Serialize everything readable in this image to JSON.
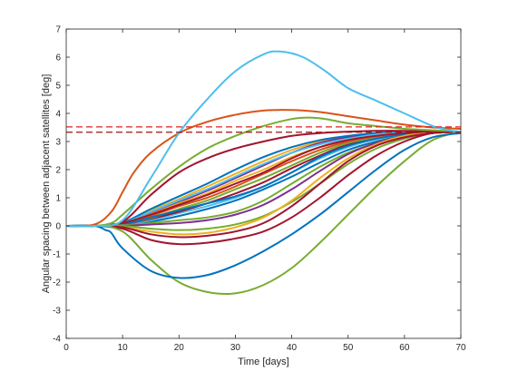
{
  "chart_data": {
    "type": "line",
    "title": "",
    "xlabel": "Time [days]",
    "ylabel": "Angular spacing between adjacent satellites [deg]",
    "xlim": [
      0,
      70
    ],
    "ylim": [
      -4,
      7
    ],
    "xticks": [
      0,
      10,
      20,
      30,
      40,
      50,
      60,
      70
    ],
    "yticks": [
      -4,
      -3,
      -2,
      -1,
      0,
      1,
      2,
      3,
      4,
      5,
      6,
      7
    ],
    "grid": false,
    "legend": "none",
    "reference_lines": [
      {
        "y": 3.52,
        "style": "dashed",
        "color": "#e02020"
      },
      {
        "y": 3.33,
        "style": "dashed",
        "color": "#a01010"
      }
    ],
    "series": [
      {
        "color": "#4dbeee",
        "x": [
          0,
          5,
          10,
          15,
          20,
          25,
          30,
          35,
          38,
          42,
          46,
          50,
          55,
          60,
          65,
          68,
          70
        ],
        "y": [
          0,
          0,
          0.2,
          1.7,
          3.3,
          4.5,
          5.5,
          6.1,
          6.2,
          6.0,
          5.5,
          4.9,
          4.45,
          4.0,
          3.55,
          3.4,
          3.35
        ]
      },
      {
        "color": "#d95319",
        "x": [
          0,
          5,
          8,
          10,
          12,
          15,
          20,
          25,
          30,
          35,
          40,
          45,
          50,
          55,
          60,
          65,
          70
        ],
        "y": [
          0,
          0.05,
          0.5,
          1.2,
          1.9,
          2.6,
          3.3,
          3.7,
          3.95,
          4.1,
          4.12,
          4.05,
          3.9,
          3.75,
          3.6,
          3.5,
          3.45
        ]
      },
      {
        "color": "#77ac30",
        "x": [
          0,
          5,
          8,
          10,
          15,
          20,
          25,
          30,
          35,
          40,
          43,
          46,
          50,
          55,
          60,
          65,
          70
        ],
        "y": [
          0,
          0,
          0.1,
          0.4,
          1.3,
          2.1,
          2.75,
          3.2,
          3.55,
          3.8,
          3.85,
          3.8,
          3.65,
          3.55,
          3.45,
          3.4,
          3.35
        ]
      },
      {
        "color": "#0072bd",
        "x": [
          0,
          5,
          7,
          8,
          10,
          15,
          20,
          25,
          30,
          35,
          40,
          45,
          50,
          55,
          60,
          65,
          70
        ],
        "y": [
          0,
          0,
          -0.15,
          -0.25,
          -0.8,
          -1.6,
          -1.85,
          -1.75,
          -1.4,
          -0.9,
          -0.3,
          0.4,
          1.2,
          2.0,
          2.7,
          3.15,
          3.3
        ]
      },
      {
        "color": "#77ac30",
        "x": [
          0,
          5,
          10,
          15,
          20,
          25,
          30,
          35,
          40,
          45,
          50,
          55,
          60,
          65,
          70
        ],
        "y": [
          0,
          0,
          -0.2,
          -1.2,
          -2.0,
          -2.35,
          -2.4,
          -2.1,
          -1.5,
          -0.6,
          0.4,
          1.4,
          2.3,
          3.05,
          3.35
        ]
      },
      {
        "color": "#a2142f",
        "x": [
          0,
          5,
          10,
          15,
          20,
          25,
          30,
          35,
          40,
          45,
          50,
          55,
          60,
          65,
          70
        ],
        "y": [
          0,
          0,
          -0.1,
          -0.5,
          -0.65,
          -0.6,
          -0.45,
          -0.2,
          0.3,
          1.0,
          1.8,
          2.5,
          3.0,
          3.3,
          3.35
        ]
      },
      {
        "color": "#a2142f",
        "x": [
          0,
          5,
          10,
          15,
          20,
          25,
          30,
          35,
          40,
          45,
          50,
          55,
          60,
          65,
          70
        ],
        "y": [
          0,
          0,
          -0.05,
          -0.3,
          -0.4,
          -0.35,
          -0.2,
          0.1,
          0.7,
          1.5,
          2.3,
          2.85,
          3.15,
          3.3,
          3.35
        ]
      },
      {
        "color": "#edb120",
        "x": [
          0,
          5,
          10,
          15,
          20,
          25,
          30,
          35,
          40,
          45,
          50,
          55,
          60,
          65,
          70
        ],
        "y": [
          0,
          0,
          -0.05,
          -0.2,
          -0.3,
          -0.25,
          -0.05,
          0.3,
          0.9,
          1.7,
          2.4,
          2.9,
          3.2,
          3.3,
          3.35
        ]
      },
      {
        "color": "#77ac30",
        "x": [
          0,
          5,
          10,
          15,
          20,
          25,
          30,
          35,
          40,
          45,
          50,
          55,
          60,
          65,
          70
        ],
        "y": [
          0,
          0,
          0,
          -0.1,
          -0.15,
          -0.1,
          0.05,
          0.35,
          0.85,
          1.5,
          2.2,
          2.75,
          3.1,
          3.3,
          3.35
        ]
      },
      {
        "color": "#7e2f8e",
        "x": [
          0,
          5,
          10,
          15,
          20,
          25,
          30,
          35,
          40,
          45,
          50,
          55,
          60,
          65,
          70
        ],
        "y": [
          0,
          0,
          0,
          0.05,
          0.1,
          0.2,
          0.4,
          0.75,
          1.3,
          1.95,
          2.55,
          2.95,
          3.2,
          3.3,
          3.35
        ]
      },
      {
        "color": "#77ac30",
        "x": [
          0,
          5,
          10,
          15,
          20,
          25,
          30,
          35,
          40,
          45,
          50,
          55,
          60,
          65,
          70
        ],
        "y": [
          0,
          0,
          0.02,
          0.1,
          0.2,
          0.3,
          0.5,
          0.9,
          1.5,
          2.1,
          2.6,
          2.95,
          3.2,
          3.3,
          3.35
        ]
      },
      {
        "color": "#a2142f",
        "x": [
          0,
          5,
          10,
          15,
          20,
          25,
          30,
          35,
          40,
          45,
          50,
          55,
          60,
          65,
          70
        ],
        "y": [
          0,
          0,
          0.15,
          1.1,
          1.9,
          2.4,
          2.75,
          3.0,
          3.2,
          3.3,
          3.35,
          3.38,
          3.38,
          3.36,
          3.35
        ]
      },
      {
        "color": "#a2142f",
        "x": [
          0,
          5,
          10,
          15,
          20,
          25,
          30,
          35,
          40,
          45,
          50,
          55,
          60,
          65,
          70
        ],
        "y": [
          0,
          0,
          0.1,
          0.4,
          0.75,
          1.1,
          1.5,
          1.9,
          2.4,
          2.8,
          3.05,
          3.2,
          3.3,
          3.33,
          3.35
        ]
      },
      {
        "color": "#0072bd",
        "x": [
          0,
          5,
          10,
          15,
          20,
          25,
          30,
          35,
          40,
          45,
          50,
          55,
          60,
          65,
          70
        ],
        "y": [
          0,
          0,
          0.05,
          0.3,
          0.55,
          0.8,
          1.05,
          1.4,
          1.9,
          2.45,
          2.85,
          3.1,
          3.25,
          3.32,
          3.35
        ]
      },
      {
        "color": "#4dbeee",
        "x": [
          0,
          5,
          10,
          15,
          20,
          25,
          30,
          35,
          40,
          45,
          50,
          55,
          60,
          65,
          70
        ],
        "y": [
          0,
          0,
          0.1,
          0.5,
          0.9,
          1.3,
          1.75,
          2.2,
          2.6,
          2.9,
          3.1,
          3.25,
          3.32,
          3.35,
          3.35
        ]
      },
      {
        "color": "#edb120",
        "x": [
          0,
          5,
          10,
          15,
          20,
          25,
          30,
          35,
          40,
          45,
          50,
          55,
          60,
          65,
          70
        ],
        "y": [
          0,
          0,
          0.08,
          0.42,
          0.8,
          1.15,
          1.6,
          2.0,
          2.45,
          2.8,
          3.05,
          3.2,
          3.3,
          3.34,
          3.35
        ]
      },
      {
        "color": "#d95319",
        "x": [
          0,
          5,
          10,
          15,
          20,
          25,
          30,
          35,
          40,
          45,
          50,
          55,
          60,
          65,
          70
        ],
        "y": [
          0,
          0,
          0.07,
          0.35,
          0.7,
          1.0,
          1.4,
          1.85,
          2.3,
          2.7,
          3.0,
          3.18,
          3.28,
          3.33,
          3.35
        ]
      },
      {
        "color": "#77ac30",
        "x": [
          0,
          5,
          10,
          15,
          20,
          25,
          30,
          35,
          40,
          45,
          50,
          55,
          60,
          65,
          70
        ],
        "y": [
          0,
          0,
          0.06,
          0.28,
          0.6,
          0.9,
          1.3,
          1.7,
          2.15,
          2.6,
          2.95,
          3.15,
          3.27,
          3.33,
          3.35
        ]
      },
      {
        "color": "#0072bd",
        "x": [
          0,
          5,
          10,
          15,
          20,
          25,
          30,
          35,
          40,
          45,
          50,
          55,
          60,
          65,
          70
        ],
        "y": [
          0,
          0,
          0.12,
          0.6,
          1.05,
          1.5,
          2.0,
          2.45,
          2.8,
          3.05,
          3.2,
          3.3,
          3.34,
          3.35,
          3.35
        ]
      },
      {
        "color": "#a2142f",
        "x": [
          0,
          5,
          10,
          15,
          20,
          25,
          30,
          35,
          40,
          45,
          50,
          55,
          60,
          65,
          70
        ],
        "y": [
          0,
          0,
          0.05,
          0.25,
          0.5,
          0.8,
          1.15,
          1.55,
          2.05,
          2.5,
          2.9,
          3.12,
          3.26,
          3.33,
          3.35
        ]
      },
      {
        "color": "#7e2f8e",
        "x": [
          0,
          5,
          10,
          15,
          20,
          25,
          30,
          35,
          40,
          45,
          50,
          55,
          60,
          65,
          70
        ],
        "y": [
          0,
          0,
          0.09,
          0.45,
          0.85,
          1.25,
          1.7,
          2.15,
          2.6,
          2.95,
          3.15,
          3.27,
          3.33,
          3.35,
          3.35
        ]
      },
      {
        "color": "#4dbeee",
        "x": [
          0,
          5,
          10,
          15,
          20,
          25,
          30,
          35,
          40,
          45,
          50,
          55,
          60,
          65,
          70
        ],
        "y": [
          0,
          0,
          0.04,
          0.2,
          0.45,
          0.7,
          1.0,
          1.4,
          1.9,
          2.4,
          2.8,
          3.08,
          3.24,
          3.32,
          3.35
        ]
      },
      {
        "color": "#0072bd",
        "x": [
          0,
          5,
          10,
          15,
          20,
          25,
          30,
          35,
          40,
          45,
          50,
          55,
          60,
          65,
          70
        ],
        "y": [
          0,
          0,
          0.03,
          0.15,
          0.35,
          0.6,
          0.9,
          1.3,
          1.75,
          2.25,
          2.7,
          3.0,
          3.2,
          3.3,
          3.35
        ]
      },
      {
        "color": "#edb120",
        "x": [
          0,
          5,
          10,
          15,
          20,
          25,
          30,
          35,
          40,
          45,
          50,
          55,
          60,
          65,
          70
        ],
        "y": [
          0,
          0,
          0.1,
          0.55,
          0.95,
          1.4,
          1.85,
          2.3,
          2.7,
          3.0,
          3.18,
          3.28,
          3.33,
          3.35,
          3.35
        ]
      }
    ]
  }
}
